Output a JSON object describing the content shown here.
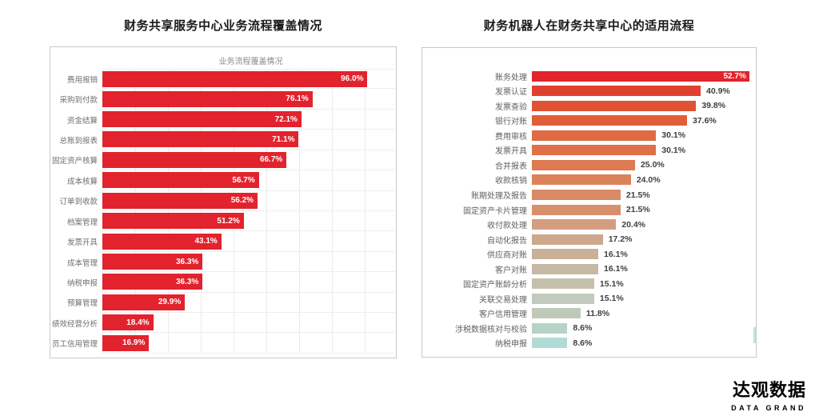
{
  "page": {
    "background": "#ffffff"
  },
  "chart_data": [
    {
      "type": "bar",
      "orientation": "horizontal",
      "title": "财务共享服务中心业务流程覆盖情况",
      "inner_title": "业务流程覆盖情况",
      "categories": [
        "费用报销",
        "采购到付款",
        "资金结算",
        "总账到报表",
        "固定资产核算",
        "成本核算",
        "订单到收款",
        "档案管理",
        "发票开具",
        "成本管理",
        "纳税申报",
        "预算管理",
        "绩效经营分析",
        "员工信用管理"
      ],
      "values": [
        96.0,
        76.1,
        72.1,
        71.1,
        66.7,
        56.7,
        56.2,
        51.2,
        43.1,
        36.3,
        36.3,
        29.9,
        18.4,
        16.9
      ],
      "unit": "%",
      "xlim": [
        0,
        106
      ],
      "bar_color": "#e2232d",
      "value_label_position": "inside-end",
      "value_label_color": "#ffffff",
      "grid": "vertical"
    },
    {
      "type": "bar",
      "orientation": "horizontal",
      "title": "财务机器人在财务共享中心的适用流程",
      "categories": [
        "账务处理",
        "发票认证",
        "发票查验",
        "银行对账",
        "费用审核",
        "发票开具",
        "合并报表",
        "收款核销",
        "账期处理及报告",
        "固定资产卡片管理",
        "收付款处理",
        "自动化报告",
        "供应商对账",
        "客户对账",
        "固定资产账龄分析",
        "关联交易处理",
        "客户信用管理",
        "涉税数据核对与校验",
        "纳税申报"
      ],
      "values": [
        52.7,
        40.9,
        39.8,
        37.6,
        30.1,
        30.1,
        25.0,
        24.0,
        21.5,
        21.5,
        20.4,
        17.2,
        16.1,
        16.1,
        15.1,
        15.1,
        11.8,
        8.6,
        8.6
      ],
      "unit": "%",
      "xlim": [
        0,
        53.5
      ],
      "bar_colors": [
        "#e2242c",
        "#e0412e",
        "#e05233",
        "#e05e38",
        "#df6a43",
        "#df7048",
        "#dd7a52",
        "#dc825b",
        "#da8a64",
        "#d98f6b",
        "#d39d7f",
        "#cda88d",
        "#c9b098",
        "#c5b8a4",
        "#c4c0ab",
        "#c0cabd",
        "#bfc9b8",
        "#b6d3c6",
        "#b3dbd5"
      ],
      "value_label_position": "outside-end",
      "value_label_color": "#3f3f3f",
      "first_value_label_inside": true,
      "grid": "none"
    }
  ],
  "logo": {
    "name": "达观数据",
    "subtitle": "DATA GRAND",
    "name_color": "#2d5dc8",
    "subtitle_color": "#7d9ede"
  }
}
